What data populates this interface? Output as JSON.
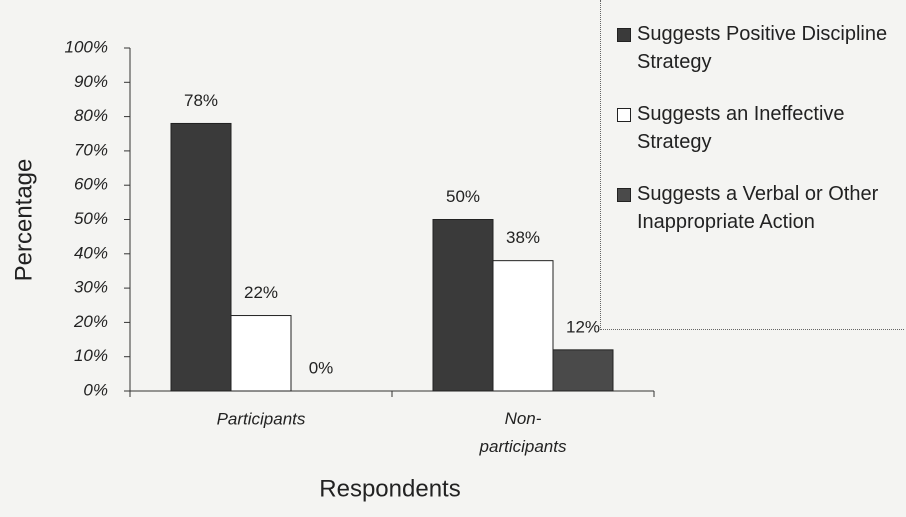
{
  "chart_data": {
    "type": "bar",
    "x_label": "Respondents",
    "y_label": "Percentage",
    "categories": [
      "Participants",
      "Non-participants"
    ],
    "series": [
      {
        "name": "Suggests Positive Discipline Strategy",
        "color": "#3a3a3a",
        "values": [
          78,
          50
        ],
        "value_labels": [
          "78%",
          "50%"
        ]
      },
      {
        "name": "Suggests an Ineffective Strategy",
        "color": "#ffffff",
        "values": [
          22,
          38
        ],
        "value_labels": [
          "22%",
          "38%"
        ]
      },
      {
        "name": "Suggests a Verbal or Other Inappropriate Action",
        "color": "#4a4a4a",
        "values": [
          0,
          12
        ],
        "value_labels": [
          "0%",
          "12%"
        ]
      }
    ],
    "ylim": [
      0,
      100
    ],
    "yticks": [
      {
        "value": 0,
        "label": "0%"
      },
      {
        "value": 10,
        "label": "10%"
      },
      {
        "value": 20,
        "label": "20%"
      },
      {
        "value": 30,
        "label": "30%"
      },
      {
        "value": 40,
        "label": "40%"
      },
      {
        "value": 50,
        "label": "50%"
      },
      {
        "value": 60,
        "label": "60%"
      },
      {
        "value": 70,
        "label": "70%"
      },
      {
        "value": 80,
        "label": "80%"
      },
      {
        "value": 90,
        "label": "90%"
      },
      {
        "value": 100,
        "label": "100%"
      }
    ],
    "legend": "top-right"
  }
}
